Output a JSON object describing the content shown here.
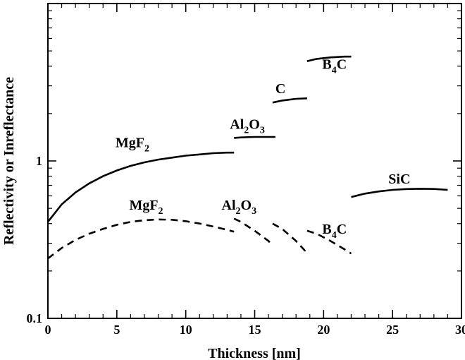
{
  "chart_data": {
    "type": "line",
    "title": "",
    "xlabel": "Thickness [nm]",
    "ylabel": "Reflectivity or Inreflectance",
    "xlim": [
      0,
      30
    ],
    "ylim": [
      0.1,
      10
    ],
    "yscale": "log",
    "grid": false,
    "x_ticks": [
      0,
      5,
      10,
      15,
      20,
      25,
      30
    ],
    "x_tick_labels": [
      "0",
      "5",
      "10",
      "15",
      "20",
      "25",
      "30"
    ],
    "y_tick_labels": [
      {
        "value": 0.1,
        "label": "0.1"
      },
      {
        "value": 1,
        "label": "1"
      }
    ],
    "series": [
      {
        "style": "solid",
        "x": [
          0,
          1,
          2,
          3,
          4,
          5,
          6,
          7,
          8,
          9,
          10,
          11,
          12,
          13,
          13.5
        ],
        "y": [
          0.41,
          0.53,
          0.63,
          0.72,
          0.8,
          0.87,
          0.93,
          0.98,
          1.02,
          1.05,
          1.08,
          1.1,
          1.12,
          1.13,
          1.13
        ]
      },
      {
        "style": "solid",
        "x": [
          13.5,
          14,
          15,
          16,
          16.5
        ],
        "y": [
          1.4,
          1.41,
          1.42,
          1.42,
          1.42
        ]
      },
      {
        "style": "solid",
        "x": [
          16.3,
          17,
          18,
          18.8
        ],
        "y": [
          2.35,
          2.42,
          2.48,
          2.5
        ]
      },
      {
        "style": "solid",
        "x": [
          18.8,
          19.5,
          20.5,
          21.5,
          22
        ],
        "y": [
          4.3,
          4.45,
          4.55,
          4.6,
          4.6
        ]
      },
      {
        "style": "solid",
        "x": [
          22,
          23,
          24,
          25,
          26,
          27,
          28,
          29
        ],
        "y": [
          0.59,
          0.62,
          0.64,
          0.655,
          0.663,
          0.666,
          0.664,
          0.655
        ]
      },
      {
        "style": "dashed",
        "x": [
          0,
          1,
          2,
          3,
          4,
          5,
          6,
          7,
          8,
          9,
          10,
          11,
          12,
          13,
          13.5
        ],
        "y": [
          0.24,
          0.28,
          0.315,
          0.345,
          0.37,
          0.393,
          0.41,
          0.42,
          0.425,
          0.423,
          0.414,
          0.4,
          0.383,
          0.365,
          0.355
        ]
      },
      {
        "style": "dashed",
        "x": [
          13.5,
          14,
          15,
          16,
          16.3
        ],
        "y": [
          0.43,
          0.41,
          0.36,
          0.31,
          0.29
        ]
      },
      {
        "style": "dashed",
        "x": [
          16.3,
          17,
          18,
          18.8
        ],
        "y": [
          0.4,
          0.37,
          0.31,
          0.26
        ]
      },
      {
        "style": "dashed",
        "x": [
          18.8,
          19.5,
          20.5,
          21.5,
          22
        ],
        "y": [
          0.36,
          0.345,
          0.31,
          0.275,
          0.258
        ]
      }
    ],
    "annotations": [
      {
        "id": "mgf2-solid",
        "base": "MgF",
        "sub": "2",
        "rest": "",
        "x": 4.9,
        "y": 1.22
      },
      {
        "id": "al2o3-solid",
        "base": "Al",
        "sub": "2",
        "rest": "O",
        "sub2": "3",
        "x": 13.2,
        "y": 1.6
      },
      {
        "id": "c-solid",
        "base": "C",
        "sub": "",
        "rest": "",
        "x": 16.5,
        "y": 2.7
      },
      {
        "id": "b4c-solid",
        "base": "B",
        "sub": "4",
        "rest": "C",
        "x": 19.9,
        "y": 3.85
      },
      {
        "id": "sic-solid",
        "base": "SiC",
        "sub": "",
        "rest": "",
        "x": 24.7,
        "y": 0.72
      },
      {
        "id": "mgf2-dashed",
        "base": "MgF",
        "sub": "2",
        "rest": "",
        "x": 5.9,
        "y": 0.49
      },
      {
        "id": "al2o3-dashed",
        "base": "Al",
        "sub": "2",
        "rest": "O",
        "sub2": "3",
        "x": 12.6,
        "y": 0.49
      },
      {
        "id": "b4c-dashed",
        "base": "B",
        "sub": "4",
        "rest": "C",
        "x": 19.9,
        "y": 0.345
      }
    ]
  }
}
